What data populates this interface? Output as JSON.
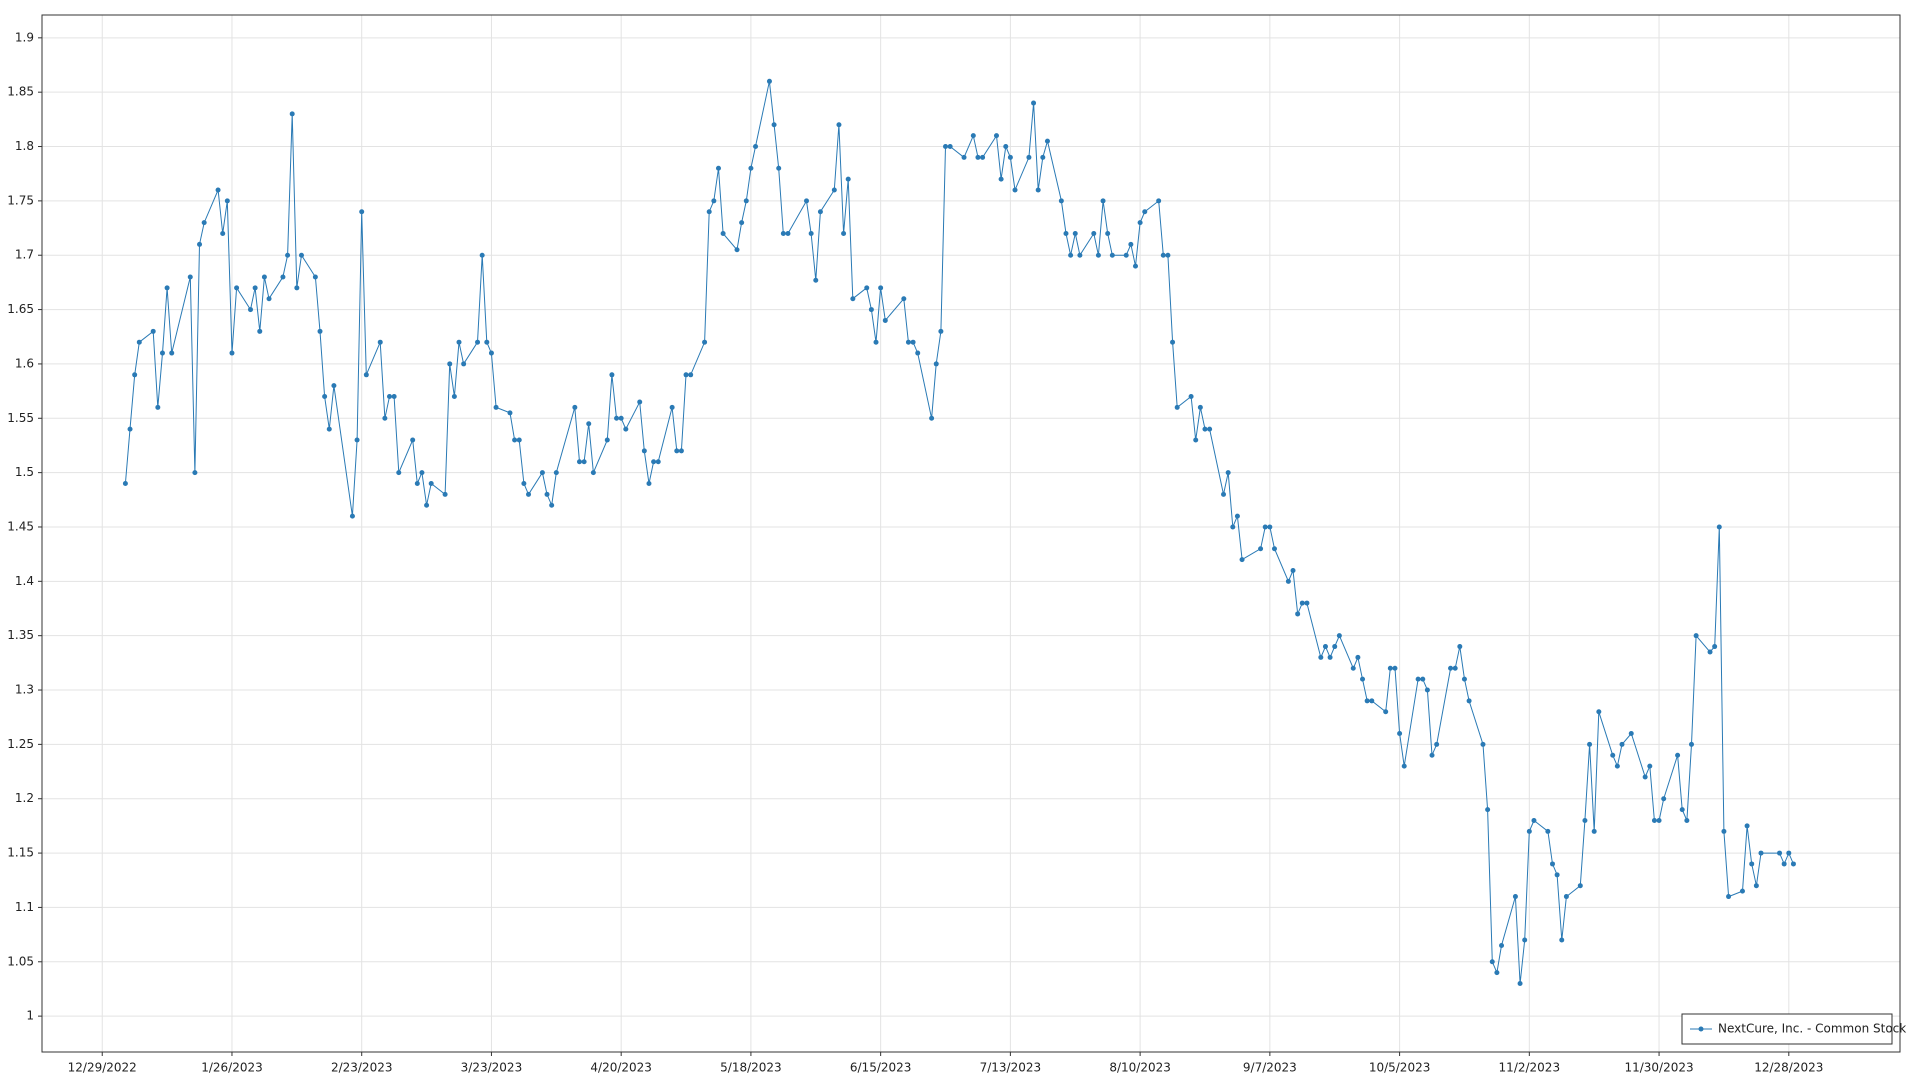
{
  "chart_data": {
    "type": "line",
    "x": [
      "1/3/2023",
      "1/4/2023",
      "1/5/2023",
      "1/6/2023",
      "1/9/2023",
      "1/10/2023",
      "1/11/2023",
      "1/12/2023",
      "1/13/2023",
      "1/17/2023",
      "1/18/2023",
      "1/19/2023",
      "1/20/2023",
      "1/23/2023",
      "1/24/2023",
      "1/25/2023",
      "1/26/2023",
      "1/27/2023",
      "1/30/2023",
      "1/31/2023",
      "2/1/2023",
      "2/2/2023",
      "2/3/2023",
      "2/6/2023",
      "2/7/2023",
      "2/8/2023",
      "2/9/2023",
      "2/10/2023",
      "2/13/2023",
      "2/14/2023",
      "2/15/2023",
      "2/16/2023",
      "2/17/2023",
      "2/21/2023",
      "2/22/2023",
      "2/23/2023",
      "2/24/2023",
      "2/27/2023",
      "2/28/2023",
      "3/1/2023",
      "3/2/2023",
      "3/3/2023",
      "3/6/2023",
      "3/7/2023",
      "3/8/2023",
      "3/9/2023",
      "3/10/2023",
      "3/13/2023",
      "3/14/2023",
      "3/15/2023",
      "3/16/2023",
      "3/17/2023",
      "3/20/2023",
      "3/21/2023",
      "3/22/2023",
      "3/23/2023",
      "3/24/2023",
      "3/27/2023",
      "3/28/2023",
      "3/29/2023",
      "3/30/2023",
      "3/31/2023",
      "4/3/2023",
      "4/4/2023",
      "4/5/2023",
      "4/6/2023",
      "4/10/2023",
      "4/11/2023",
      "4/12/2023",
      "4/13/2023",
      "4/14/2023",
      "4/17/2023",
      "4/18/2023",
      "4/19/2023",
      "4/20/2023",
      "4/21/2023",
      "4/24/2023",
      "4/25/2023",
      "4/26/2023",
      "4/27/2023",
      "4/28/2023",
      "5/1/2023",
      "5/2/2023",
      "5/3/2023",
      "5/4/2023",
      "5/5/2023",
      "5/8/2023",
      "5/9/2023",
      "5/10/2023",
      "5/11/2023",
      "5/12/2023",
      "5/15/2023",
      "5/16/2023",
      "5/17/2023",
      "5/18/2023",
      "5/19/2023",
      "5/22/2023",
      "5/23/2023",
      "5/24/2023",
      "5/25/2023",
      "5/26/2023",
      "5/30/2023",
      "5/31/2023",
      "6/1/2023",
      "6/2/2023",
      "6/5/2023",
      "6/6/2023",
      "6/7/2023",
      "6/8/2023",
      "6/9/2023",
      "6/12/2023",
      "6/13/2023",
      "6/14/2023",
      "6/15/2023",
      "6/16/2023",
      "6/20/2023",
      "6/21/2023",
      "6/22/2023",
      "6/23/2023",
      "6/26/2023",
      "6/27/2023",
      "6/28/2023",
      "6/29/2023",
      "6/30/2023",
      "7/3/2023",
      "7/5/2023",
      "7/6/2023",
      "7/7/2023",
      "7/10/2023",
      "7/11/2023",
      "7/12/2023",
      "7/13/2023",
      "7/14/2023",
      "7/17/2023",
      "7/18/2023",
      "7/19/2023",
      "7/20/2023",
      "7/21/2023",
      "7/24/2023",
      "7/25/2023",
      "7/26/2023",
      "7/27/2023",
      "7/28/2023",
      "7/31/2023",
      "8/1/2023",
      "8/2/2023",
      "8/3/2023",
      "8/4/2023",
      "8/7/2023",
      "8/8/2023",
      "8/9/2023",
      "8/10/2023",
      "8/11/2023",
      "8/14/2023",
      "8/15/2023",
      "8/16/2023",
      "8/17/2023",
      "8/18/2023",
      "8/21/2023",
      "8/22/2023",
      "8/23/2023",
      "8/24/2023",
      "8/25/2023",
      "8/28/2023",
      "8/29/2023",
      "8/30/2023",
      "8/31/2023",
      "9/1/2023",
      "9/5/2023",
      "9/6/2023",
      "9/7/2023",
      "9/8/2023",
      "9/11/2023",
      "9/12/2023",
      "9/13/2023",
      "9/14/2023",
      "9/15/2023",
      "9/18/2023",
      "9/19/2023",
      "9/20/2023",
      "9/21/2023",
      "9/22/2023",
      "9/25/2023",
      "9/26/2023",
      "9/27/2023",
      "9/28/2023",
      "9/29/2023",
      "10/2/2023",
      "10/3/2023",
      "10/4/2023",
      "10/5/2023",
      "10/6/2023",
      "10/9/2023",
      "10/10/2023",
      "10/11/2023",
      "10/12/2023",
      "10/13/2023",
      "10/16/2023",
      "10/17/2023",
      "10/18/2023",
      "10/19/2023",
      "10/20/2023",
      "10/23/2023",
      "10/24/2023",
      "10/25/2023",
      "10/26/2023",
      "10/27/2023",
      "10/30/2023",
      "10/31/2023",
      "11/1/2023",
      "11/2/2023",
      "11/3/2023",
      "11/6/2023",
      "11/7/2023",
      "11/8/2023",
      "11/9/2023",
      "11/10/2023",
      "11/13/2023",
      "11/14/2023",
      "11/15/2023",
      "11/16/2023",
      "11/17/2023",
      "11/20/2023",
      "11/21/2023",
      "11/22/2023",
      "11/24/2023",
      "11/27/2023",
      "11/28/2023",
      "11/29/2023",
      "11/30/2023",
      "12/1/2023",
      "12/4/2023",
      "12/5/2023",
      "12/6/2023",
      "12/7/2023",
      "12/8/2023",
      "12/11/2023",
      "12/12/2023",
      "12/13/2023",
      "12/14/2023",
      "12/15/2023",
      "12/18/2023",
      "12/19/2023",
      "12/20/2023",
      "12/21/2023",
      "12/22/2023",
      "12/26/2023",
      "12/27/2023",
      "12/28/2023",
      "12/29/2023"
    ],
    "series": [
      {
        "name": "NextCure, Inc. - Common Stock",
        "color": "#2a7ab5",
        "values": [
          1.49,
          1.54,
          1.59,
          1.62,
          1.63,
          1.56,
          1.61,
          1.67,
          1.61,
          1.68,
          1.5,
          1.71,
          1.73,
          1.76,
          1.72,
          1.75,
          1.61,
          1.67,
          1.65,
          1.67,
          1.63,
          1.68,
          1.66,
          1.68,
          1.7,
          1.83,
          1.67,
          1.7,
          1.68,
          1.63,
          1.57,
          1.54,
          1.58,
          1.46,
          1.53,
          1.74,
          1.59,
          1.62,
          1.55,
          1.57,
          1.57,
          1.5,
          1.53,
          1.49,
          1.5,
          1.47,
          1.49,
          1.48,
          1.6,
          1.57,
          1.62,
          1.6,
          1.62,
          1.7,
          1.62,
          1.61,
          1.56,
          1.555,
          1.53,
          1.53,
          1.49,
          1.48,
          1.5,
          1.48,
          1.47,
          1.5,
          1.56,
          1.51,
          1.51,
          1.545,
          1.5,
          1.53,
          1.59,
          1.55,
          1.55,
          1.54,
          1.565,
          1.52,
          1.49,
          1.51,
          1.51,
          1.56,
          1.52,
          1.52,
          1.59,
          1.59,
          1.62,
          1.74,
          1.75,
          1.78,
          1.72,
          1.705,
          1.73,
          1.75,
          1.78,
          1.8,
          1.86,
          1.82,
          1.78,
          1.72,
          1.72,
          1.75,
          1.72,
          1.677,
          1.74,
          1.76,
          1.82,
          1.72,
          1.77,
          1.66,
          1.67,
          1.65,
          1.62,
          1.67,
          1.64,
          1.66,
          1.62,
          1.62,
          1.61,
          1.55,
          1.6,
          1.63,
          1.8,
          1.8,
          1.79,
          1.81,
          1.79,
          1.79,
          1.81,
          1.77,
          1.8,
          1.79,
          1.76,
          1.79,
          1.84,
          1.76,
          1.79,
          1.805,
          1.75,
          1.72,
          1.7,
          1.72,
          1.7,
          1.72,
          1.7,
          1.75,
          1.72,
          1.7,
          1.7,
          1.71,
          1.69,
          1.73,
          1.74,
          1.75,
          1.7,
          1.7,
          1.62,
          1.56,
          1.57,
          1.53,
          1.56,
          1.54,
          1.54,
          1.48,
          1.5,
          1.45,
          1.46,
          1.42,
          1.43,
          1.45,
          1.45,
          1.43,
          1.4,
          1.41,
          1.37,
          1.38,
          1.38,
          1.33,
          1.34,
          1.33,
          1.34,
          1.35,
          1.32,
          1.33,
          1.31,
          1.29,
          1.29,
          1.28,
          1.32,
          1.32,
          1.26,
          1.23,
          1.31,
          1.31,
          1.3,
          1.24,
          1.25,
          1.32,
          1.32,
          1.34,
          1.31,
          1.29,
          1.25,
          1.19,
          1.05,
          1.04,
          1.065,
          1.11,
          1.03,
          1.07,
          1.17,
          1.18,
          1.17,
          1.14,
          1.13,
          1.07,
          1.11,
          1.12,
          1.18,
          1.25,
          1.17,
          1.28,
          1.24,
          1.23,
          1.25,
          1.26,
          1.22,
          1.23,
          1.18,
          1.18,
          1.2,
          1.24,
          1.19,
          1.18,
          1.25,
          1.35,
          1.335,
          1.34,
          1.45,
          1.17,
          1.11,
          1.115,
          1.175,
          1.14,
          1.12,
          1.15,
          1.15,
          1.14,
          1.15,
          1.14
        ]
      }
    ],
    "xlim": [
      "12/16/2022",
      "1/21/2024"
    ],
    "xticks": [
      "12/29/2022",
      "1/26/2023",
      "2/23/2023",
      "3/23/2023",
      "4/20/2023",
      "5/18/2023",
      "6/15/2023",
      "7/13/2023",
      "8/10/2023",
      "9/7/2023",
      "10/5/2023",
      "11/2/2023",
      "11/30/2023",
      "12/28/2023"
    ],
    "ylim": [
      0.967,
      1.921
    ],
    "yticks": [
      1,
      1.05,
      1.1,
      1.15,
      1.2,
      1.25,
      1.3,
      1.35,
      1.4,
      1.45,
      1.5,
      1.55,
      1.6,
      1.65,
      1.7,
      1.75,
      1.8,
      1.85,
      1.9
    ],
    "grid": true,
    "legend": "lower right"
  }
}
